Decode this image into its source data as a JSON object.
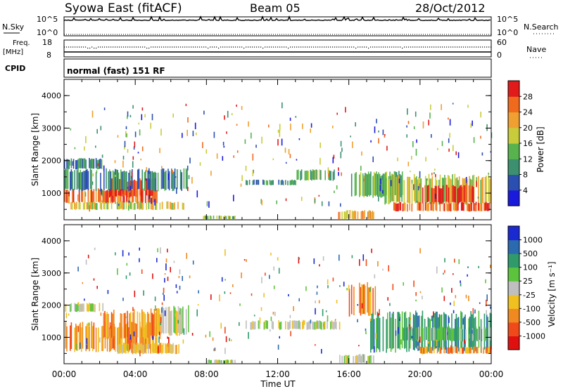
{
  "header": {
    "station": "Syowa East (fitACF)",
    "beam": "Beam 05",
    "date": "28/Oct/2012"
  },
  "top_panels": {
    "nsky_label": "N.Sky",
    "nsky_ticks": [
      "10^5",
      "10^0"
    ],
    "nsearch_label": "N.Search",
    "nsearch_ticks": [
      "10^5",
      "10^0"
    ],
    "freq_label": "Freq.",
    "freq_unit": "[MHz]",
    "freq_ticks": [
      "18",
      "8"
    ],
    "nave_label": "Nave",
    "nave_ticks": [
      "60",
      "0"
    ],
    "cpid_label": "CPID",
    "cpid_text": "normal (fast) 151 RF"
  },
  "chart_data": [
    {
      "type": "heatmap",
      "name": "power",
      "ylabel": "Slant Range [km]",
      "xlabel": "Time UT",
      "xticks": [
        "00:00",
        "04:00",
        "08:00",
        "12:00",
        "16:00",
        "20:00",
        "00:00"
      ],
      "yticks": [
        "1000",
        "2000",
        "3000",
        "4000"
      ],
      "xlim_hours": [
        0,
        24
      ],
      "ylim_km": [
        180,
        4500
      ],
      "colorbar_label": "Power [dB]",
      "colorbar_ticks": [
        "4",
        "8",
        "12",
        "16",
        "20",
        "24",
        "28"
      ],
      "colorbar_colors": [
        "#1a1adc",
        "#2a4fb0",
        "#3c8f6f",
        "#58b34e",
        "#c8cc3a",
        "#f0a030",
        "#f06a1e",
        "#e11a1a"
      ],
      "regions": [
        {
          "t0": 0.0,
          "t1": 2.2,
          "r0": 1750,
          "r1": 2050,
          "level": 2
        },
        {
          "t0": 0.0,
          "t1": 5.2,
          "r0": 700,
          "r1": 1100,
          "level": 6
        },
        {
          "t0": 2.4,
          "t1": 5.0,
          "r0": 900,
          "r1": 1400,
          "level": 7
        },
        {
          "t0": 0.0,
          "t1": 7.0,
          "r0": 1100,
          "r1": 1700,
          "level": 2
        },
        {
          "t0": 0.3,
          "t1": 6.8,
          "r0": 500,
          "r1": 720,
          "level": 4
        },
        {
          "t0": 7.8,
          "t1": 9.6,
          "r0": 200,
          "r1": 300,
          "level": 3
        },
        {
          "t0": 10.2,
          "t1": 13.0,
          "r0": 1250,
          "r1": 1400,
          "level": 2
        },
        {
          "t0": 13.0,
          "t1": 15.5,
          "r0": 1400,
          "r1": 1700,
          "level": 3
        },
        {
          "t0": 15.4,
          "t1": 17.4,
          "r0": 200,
          "r1": 450,
          "level": 5
        },
        {
          "t0": 16.0,
          "t1": 19.0,
          "r0": 900,
          "r1": 1600,
          "level": 3
        },
        {
          "t0": 18.0,
          "t1": 24.0,
          "r0": 700,
          "r1": 1500,
          "level": 4
        },
        {
          "t0": 20.0,
          "t1": 23.0,
          "r0": 700,
          "r1": 1200,
          "level": 7
        },
        {
          "t0": 18.5,
          "t1": 24.0,
          "r0": 450,
          "r1": 700,
          "level": 6
        }
      ]
    },
    {
      "type": "heatmap",
      "name": "velocity",
      "ylabel": "Slant Range [km]",
      "xlabel": "Time UT",
      "xticks": [
        "00:00",
        "04:00",
        "08:00",
        "12:00",
        "16:00",
        "20:00",
        "00:00"
      ],
      "yticks": [
        "1000",
        "2000",
        "3000",
        "4000"
      ],
      "xlim_hours": [
        0,
        24
      ],
      "ylim_km": [
        180,
        4500
      ],
      "colorbar_label": "Velocity [m s⁻¹]",
      "colorbar_ticks": [
        "1000",
        "500",
        "100",
        "25",
        "-25",
        "-100",
        "-500",
        "-1000"
      ],
      "colorbar_colors": [
        "#1a2ad0",
        "#2c6ab0",
        "#2f9a6a",
        "#5cc43c",
        "#bfbfbf",
        "#f0c020",
        "#f08a20",
        "#f04a1a",
        "#e01010"
      ],
      "regions": [
        {
          "t0": 0.0,
          "t1": 2.2,
          "r0": 1800,
          "r1": 2050,
          "level": 4
        },
        {
          "t0": 0.0,
          "t1": 5.2,
          "r0": 600,
          "r1": 1400,
          "level": 6
        },
        {
          "t0": 2.2,
          "t1": 5.4,
          "r0": 1000,
          "r1": 1800,
          "level": 6
        },
        {
          "t0": 5.0,
          "t1": 7.0,
          "r0": 1100,
          "r1": 1900,
          "level": 4
        },
        {
          "t0": 3.0,
          "t1": 6.5,
          "r0": 500,
          "r1": 800,
          "level": 5
        },
        {
          "t0": 7.8,
          "t1": 9.6,
          "r0": 200,
          "r1": 300,
          "level": 4
        },
        {
          "t0": 10.2,
          "t1": 15.5,
          "r0": 1250,
          "r1": 1500,
          "level": 4
        },
        {
          "t0": 15.4,
          "t1": 17.4,
          "r0": 200,
          "r1": 450,
          "level": 4
        },
        {
          "t0": 16.0,
          "t1": 17.5,
          "r0": 1700,
          "r1": 2600,
          "level": 6
        },
        {
          "t0": 17.2,
          "t1": 24.0,
          "r0": 600,
          "r1": 1700,
          "level": 2
        },
        {
          "t0": 19.0,
          "t1": 24.0,
          "r0": 900,
          "r1": 1300,
          "level": 3
        },
        {
          "t0": 20.0,
          "t1": 24.0,
          "r0": 500,
          "r1": 700,
          "level": 6
        }
      ]
    }
  ],
  "line_data": {
    "nsky_level": 0.82,
    "freq_level": 0.4,
    "nave_level": 0.1
  }
}
